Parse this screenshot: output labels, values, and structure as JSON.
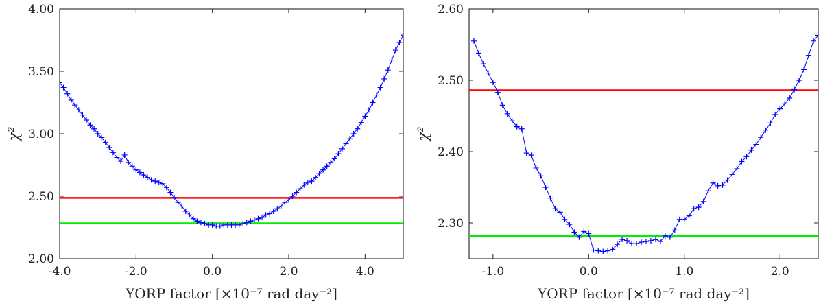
{
  "chart_data": [
    {
      "type": "line",
      "title": "",
      "xlabel": "YORP factor [×10⁻⁷ rad day⁻²]",
      "ylabel": "χ²",
      "xlim": [
        -4.0,
        5.0
      ],
      "ylim": [
        2.0,
        4.0
      ],
      "xticks": [
        "-4.0",
        "-2.0",
        "0.0",
        "2.0",
        "4.0"
      ],
      "xtick_values": [
        -4.0,
        -2.0,
        0.0,
        2.0,
        4.0
      ],
      "yticks": [
        "2.00",
        "2.50",
        "3.00",
        "3.50",
        "4.00"
      ],
      "ytick_values": [
        2.0,
        2.5,
        3.0,
        3.5,
        4.0
      ],
      "hlines": [
        {
          "name": "red-threshold",
          "y": 2.487,
          "color": "#ff0000"
        },
        {
          "name": "green-threshold",
          "y": 2.283,
          "color": "#00ee00"
        }
      ],
      "series": [
        {
          "name": "chi2",
          "color": "#0000ff",
          "marker": "+",
          "x": [
            -4.0,
            -3.9,
            -3.8,
            -3.7,
            -3.6,
            -3.5,
            -3.4,
            -3.3,
            -3.2,
            -3.1,
            -3.0,
            -2.9,
            -2.8,
            -2.7,
            -2.6,
            -2.5,
            -2.4,
            -2.3,
            -2.2,
            -2.1,
            -2.0,
            -1.9,
            -1.8,
            -1.7,
            -1.6,
            -1.5,
            -1.4,
            -1.3,
            -1.2,
            -1.1,
            -1.0,
            -0.9,
            -0.8,
            -0.7,
            -0.6,
            -0.5,
            -0.4,
            -0.3,
            -0.2,
            -0.1,
            0.0,
            0.1,
            0.2,
            0.3,
            0.4,
            0.5,
            0.6,
            0.7,
            0.8,
            0.9,
            1.0,
            1.1,
            1.2,
            1.3,
            1.4,
            1.5,
            1.6,
            1.7,
            1.8,
            1.9,
            2.0,
            2.1,
            2.2,
            2.3,
            2.4,
            2.5,
            2.6,
            2.7,
            2.8,
            2.9,
            3.0,
            3.1,
            3.2,
            3.3,
            3.4,
            3.5,
            3.6,
            3.7,
            3.8,
            3.9,
            4.0,
            4.1,
            4.2,
            4.3,
            4.4,
            4.5,
            4.6,
            4.7,
            4.8,
            4.9,
            5.0
          ],
          "y": [
            3.41,
            3.37,
            3.32,
            3.27,
            3.23,
            3.19,
            3.15,
            3.11,
            3.07,
            3.04,
            3.0,
            2.97,
            2.93,
            2.89,
            2.85,
            2.81,
            2.78,
            2.83,
            2.77,
            2.74,
            2.71,
            2.69,
            2.67,
            2.65,
            2.63,
            2.62,
            2.61,
            2.6,
            2.57,
            2.53,
            2.49,
            2.45,
            2.42,
            2.38,
            2.35,
            2.32,
            2.3,
            2.29,
            2.28,
            2.27,
            2.27,
            2.26,
            2.26,
            2.27,
            2.27,
            2.27,
            2.27,
            2.27,
            2.28,
            2.29,
            2.3,
            2.31,
            2.32,
            2.33,
            2.35,
            2.36,
            2.38,
            2.4,
            2.42,
            2.45,
            2.47,
            2.5,
            2.53,
            2.56,
            2.59,
            2.61,
            2.62,
            2.65,
            2.68,
            2.71,
            2.74,
            2.77,
            2.8,
            2.84,
            2.88,
            2.92,
            2.96,
            3.0,
            3.04,
            3.09,
            3.14,
            3.19,
            3.25,
            3.31,
            3.37,
            3.44,
            3.51,
            3.59,
            3.67,
            3.73,
            3.79
          ]
        }
      ]
    },
    {
      "type": "line",
      "title": "",
      "xlabel": "YORP factor [×10⁻⁷ rad day⁻²]",
      "ylabel": "χ²",
      "xlim": [
        -1.25,
        2.4
      ],
      "ylim": [
        2.25,
        2.6
      ],
      "xticks": [
        "-1.0",
        "0.0",
        "1.0",
        "2.0"
      ],
      "xtick_values": [
        -1.0,
        0.0,
        1.0,
        2.0
      ],
      "yticks": [
        "2.30",
        "2.40",
        "2.50",
        "2.60"
      ],
      "ytick_values": [
        2.3,
        2.4,
        2.5,
        2.6
      ],
      "hlines": [
        {
          "name": "red-threshold",
          "y": 2.486,
          "color": "#ff0000"
        },
        {
          "name": "green-threshold",
          "y": 2.282,
          "color": "#00ee00"
        }
      ],
      "series": [
        {
          "name": "chi2",
          "color": "#0000ff",
          "marker": "+",
          "x": [
            -1.2,
            -1.15,
            -1.1,
            -1.05,
            -1.0,
            -0.95,
            -0.9,
            -0.85,
            -0.8,
            -0.75,
            -0.7,
            -0.65,
            -0.6,
            -0.55,
            -0.5,
            -0.45,
            -0.4,
            -0.35,
            -0.3,
            -0.25,
            -0.2,
            -0.15,
            -0.1,
            -0.05,
            0.0,
            0.05,
            0.1,
            0.15,
            0.2,
            0.25,
            0.3,
            0.35,
            0.4,
            0.45,
            0.5,
            0.55,
            0.6,
            0.65,
            0.7,
            0.75,
            0.8,
            0.85,
            0.9,
            0.95,
            1.0,
            1.05,
            1.1,
            1.15,
            1.2,
            1.25,
            1.3,
            1.35,
            1.4,
            1.45,
            1.5,
            1.55,
            1.6,
            1.65,
            1.7,
            1.75,
            1.8,
            1.85,
            1.9,
            1.95,
            2.0,
            2.05,
            2.1,
            2.15,
            2.2,
            2.25,
            2.3,
            2.35,
            2.4
          ],
          "y": [
            2.555,
            2.538,
            2.523,
            2.51,
            2.497,
            2.483,
            2.465,
            2.453,
            2.443,
            2.435,
            2.432,
            2.398,
            2.395,
            2.377,
            2.366,
            2.35,
            2.335,
            2.32,
            2.315,
            2.305,
            2.298,
            2.287,
            2.28,
            2.288,
            2.285,
            2.262,
            2.261,
            2.26,
            2.261,
            2.263,
            2.27,
            2.277,
            2.275,
            2.271,
            2.271,
            2.273,
            2.274,
            2.275,
            2.277,
            2.274,
            2.282,
            2.28,
            2.29,
            2.305,
            2.305,
            2.31,
            2.32,
            2.322,
            2.33,
            2.345,
            2.356,
            2.352,
            2.353,
            2.36,
            2.368,
            2.376,
            2.386,
            2.393,
            2.402,
            2.41,
            2.42,
            2.43,
            2.44,
            2.452,
            2.46,
            2.467,
            2.475,
            2.487,
            2.5,
            2.515,
            2.535,
            2.555,
            2.563
          ]
        }
      ]
    }
  ]
}
